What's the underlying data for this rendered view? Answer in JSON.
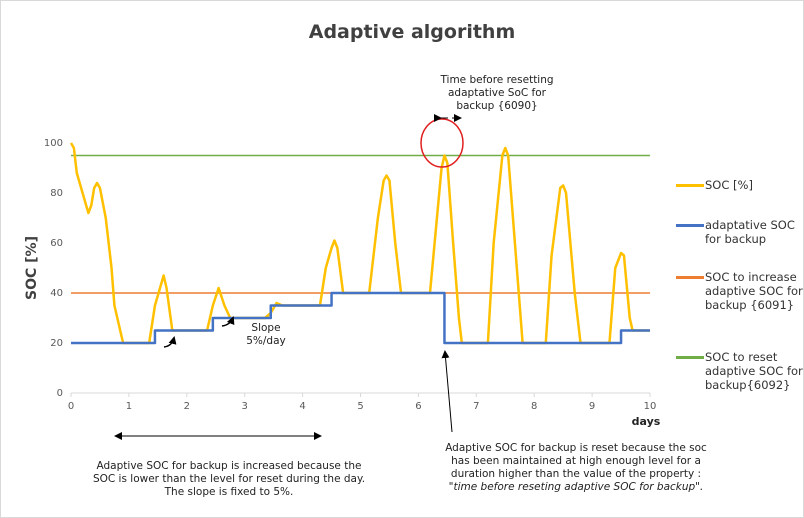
{
  "chart_data": {
    "type": "line",
    "title": "Adaptive algorithm",
    "y_label": "SOC [%]",
    "x_label": "days",
    "xlim": [
      0,
      10
    ],
    "xticks": [
      0,
      1,
      2,
      3,
      4,
      5,
      6,
      7,
      8,
      9,
      10
    ],
    "ylim": [
      0,
      100
    ],
    "yticks": [
      0,
      20,
      40,
      60,
      80,
      100
    ],
    "grid": false,
    "legend": "right",
    "series": [
      {
        "name": "SOC [%]",
        "color": "#ffc000",
        "x": [
          0,
          0.05,
          0.1,
          0.2,
          0.3,
          0.35,
          0.4,
          0.45,
          0.5,
          0.6,
          0.7,
          0.75,
          0.85,
          0.9,
          1.35,
          1.45,
          1.55,
          1.6,
          1.65,
          1.75,
          1.8,
          2.35,
          2.45,
          2.55,
          2.65,
          2.75,
          3.35,
          3.45,
          3.55,
          3.65,
          4.3,
          4.4,
          4.5,
          4.55,
          4.6,
          4.7,
          5.15,
          5.3,
          5.4,
          5.45,
          5.5,
          5.6,
          5.7,
          6.2,
          6.3,
          6.4,
          6.45,
          6.5,
          6.6,
          6.7,
          6.75,
          7.2,
          7.3,
          7.45,
          7.5,
          7.55,
          7.7,
          7.8,
          8.2,
          8.3,
          8.45,
          8.5,
          8.55,
          8.7,
          8.8,
          9.3,
          9.4,
          9.5,
          9.55,
          9.65,
          9.7,
          10
        ],
        "values": [
          100,
          98,
          88,
          80,
          72,
          75,
          82,
          84,
          82,
          70,
          50,
          35,
          25,
          20,
          20,
          35,
          43,
          47,
          42,
          25,
          25,
          25,
          35,
          42,
          35,
          30,
          30,
          32,
          36,
          35,
          35,
          50,
          58,
          61,
          58,
          40,
          40,
          70,
          85,
          87,
          85,
          60,
          40,
          40,
          65,
          90,
          95,
          92,
          60,
          30,
          20,
          20,
          60,
          95,
          98,
          95,
          50,
          20,
          20,
          55,
          82,
          83,
          80,
          40,
          20,
          20,
          50,
          56,
          55,
          30,
          25,
          25
        ]
      },
      {
        "name": "adaptative SOC for backup",
        "color": "#4472c4",
        "x": [
          0,
          1.45,
          1.45,
          2.45,
          2.45,
          3.45,
          3.45,
          4.5,
          4.5,
          6.45,
          6.45,
          9.5,
          9.5,
          10
        ],
        "values": [
          20,
          20,
          25,
          25,
          30,
          30,
          35,
          35,
          40,
          40,
          20,
          20,
          25,
          25
        ]
      },
      {
        "name": "SOC to increase adaptive SOC for backup {6091}",
        "color": "#ed7d31",
        "x": [
          0,
          10
        ],
        "values": [
          40,
          40
        ]
      },
      {
        "name": "SOC to reset adaptive SOC for backup{6092}",
        "color": "#70ad47",
        "x": [
          0,
          10
        ],
        "values": [
          95,
          95
        ]
      }
    ],
    "annotations": [
      "Time before resetting adaptative SoC for backup {6090}",
      "Slope 5%/day",
      "Adaptive SOC for backup is increased because the SOC is lower than the level for reset during the day. The slope is fixed to 5%.",
      "Adaptive SOC for backup is reset because the soc has been maintained at high enough level for a duration higher than the value of the property :",
      "\"time before reseting adaptive SOC for backup\"."
    ]
  }
}
